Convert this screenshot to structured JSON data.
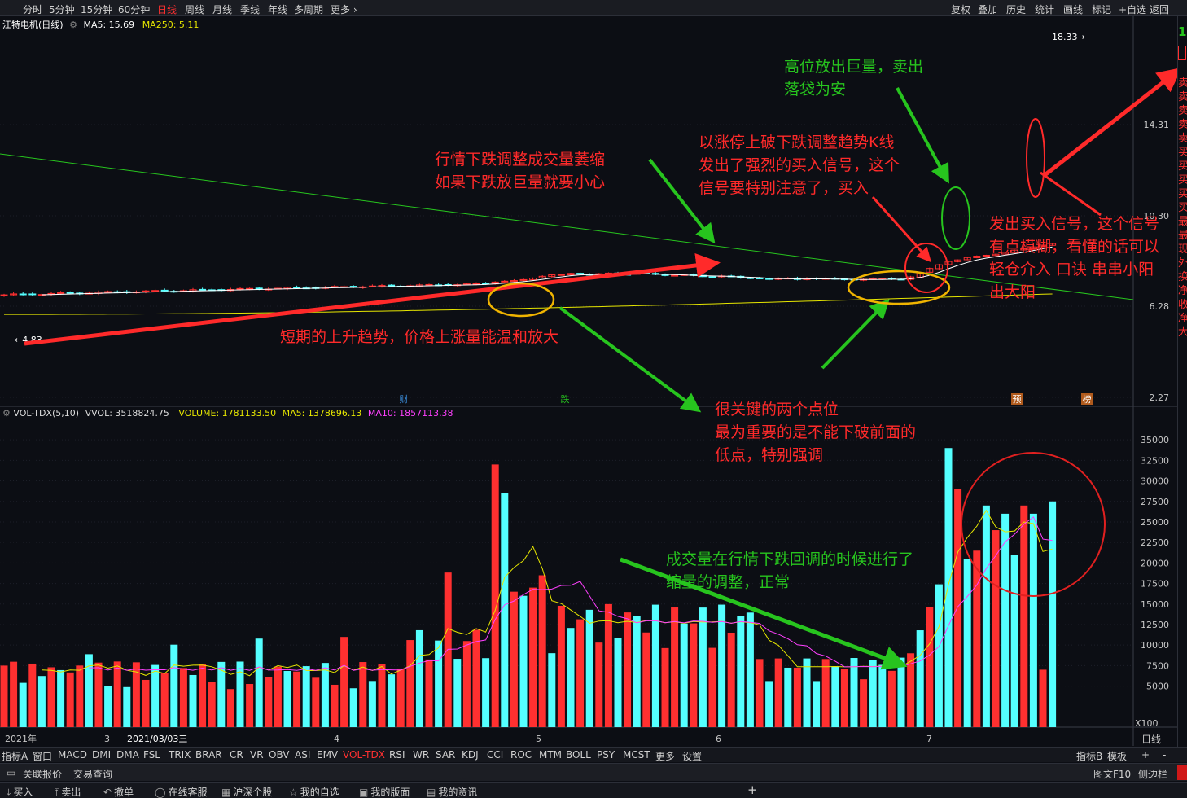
{
  "toolbar": {
    "periods": [
      "分时",
      "5分钟",
      "15分钟",
      "60分钟",
      "日线",
      "周线",
      "月线",
      "季线",
      "年线",
      "多周期",
      "更多 ›"
    ],
    "active_period": "日线",
    "right_buttons": [
      "复权",
      "叠加",
      "历史",
      "统计",
      "画线",
      "标记",
      "+自选",
      "返回"
    ]
  },
  "stock": {
    "title": "江特电机(日线)",
    "ma5_label": "MA5: 15.69",
    "ma250_label": "MA250: 5.11",
    "high_label": "18.33",
    "low_label": "4.83"
  },
  "price_axis": [
    "14.31",
    "10.30",
    "6.28",
    "2.27"
  ],
  "volume_axis": [
    "35000",
    "32500",
    "30000",
    "27500",
    "25000",
    "22500",
    "20000",
    "17500",
    "15000",
    "12500",
    "10000",
    "7500",
    "5000"
  ],
  "volume_unit": "X100",
  "volume_header": {
    "name": "VOL-TDX(5,10)",
    "vvol": "VVOL: 3518824.75",
    "volume": "VOLUME: 1781133.50",
    "ma5": "MA5: 1378696.13",
    "ma10": "MA10: 1857113.38"
  },
  "markers": [
    "财",
    "跌",
    "预",
    "榜"
  ],
  "x_axis": {
    "labels": [
      "2021年",
      "3",
      "2021/03/03三",
      "4",
      "5",
      "6",
      "7"
    ],
    "right_label": "日线"
  },
  "annotations": {
    "high_volume": [
      "高位放出巨量，卖出",
      "落袋为安"
    ],
    "volume_shrink": [
      "行情下跌调整成交量萎缩",
      "如果下跌放巨量就要小心"
    ],
    "limit_up": [
      "以涨停上破下跌调整趋势K线",
      "发出了强烈的买入信号，这个",
      "信号要特别注意了，买入"
    ],
    "buy_signal": [
      "发出买入信号，这个信号",
      "有点模糊，看懂的话可以",
      "轻仓介入 口诀 串串小阳",
      "出大阳"
    ],
    "uptrend": "短期的上升趋势，价格上涨量能温和放大",
    "key_points": [
      "很关键的两个点位",
      "最为重要的是不能下破前面的",
      "低点，特别强调"
    ],
    "volume_adjust": [
      "成交量在行情下跌回调的时候进行了",
      "缩量的调整，正常"
    ]
  },
  "indicator_tabs": [
    "指标A",
    "窗口",
    "MACD",
    "DMI",
    "DMA",
    "FSL",
    "TRIX",
    "BRAR",
    "CR",
    "VR",
    "OBV",
    "ASI",
    "EMV",
    "VOL-TDX",
    "RSI",
    "WR",
    "SAR",
    "KDJ",
    "CCI",
    "ROC",
    "MTM",
    "BOLL",
    "PSY",
    "MCST",
    "更多",
    "设置"
  ],
  "active_indicator": "VOL-TDX",
  "indicator_right": [
    "指标B",
    "模板",
    "+",
    "-"
  ],
  "nav_left": [
    "关联报价",
    "交易查询"
  ],
  "nav_right": [
    "图文F10",
    "侧边栏"
  ],
  "bottom_buttons": [
    "买入",
    "卖出",
    "撤单",
    "在线客服",
    "沪深个股",
    "我的自选",
    "我的版面",
    "我的资讯"
  ],
  "side_strip_text": "卖卖卖卖卖买买买买买最最现外换净收净大",
  "colors": {
    "up": "#ff3030",
    "down": "#54ffff",
    "ma_white": "#ffffff",
    "ma_yellow": "#e6e600",
    "ma_magenta": "#ff40ff",
    "trend_green": "#27c41e",
    "annotation_red": "#ff2a2a",
    "circle_orange": "#f0b400"
  }
}
